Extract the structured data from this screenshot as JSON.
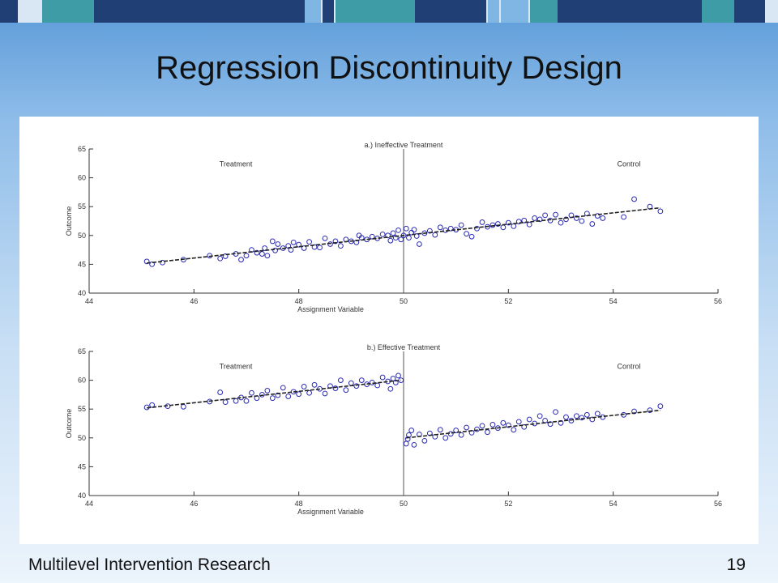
{
  "slide": {
    "title": "Regression Discontinuity Design",
    "footer": "Multilevel Intervention Research",
    "page_number": "19"
  },
  "colors": {
    "marker": "#2a2ab4",
    "fit_line": "#222222",
    "axis": "#333333",
    "topbar_dark": "#1f3f75",
    "topbar_teal": "#3d9ca6",
    "topbar_light": "#7fb6e3"
  },
  "chart_data": [
    {
      "type": "scatter",
      "title": "a.) Ineffective Treatment",
      "xlabel": "Assignment Variable",
      "ylabel": "Outcome",
      "xlim": [
        44,
        56
      ],
      "ylim": [
        40,
        65
      ],
      "xticks": [
        44,
        46,
        48,
        50,
        52,
        54,
        56
      ],
      "yticks": [
        40,
        45,
        50,
        55,
        60,
        65
      ],
      "cutoff": 50,
      "annotations": [
        {
          "text": "Treatment",
          "x": 46.8,
          "y": 62
        },
        {
          "text": "Control",
          "x": 54.3,
          "y": 62
        }
      ],
      "fit_lines": [
        {
          "x": [
            45.1,
            54.9
          ],
          "y": [
            45.2,
            54.8
          ]
        }
      ],
      "series": [
        {
          "x": [
            45.1,
            45.2,
            45.4,
            45.8,
            46.3,
            46.5,
            46.6,
            46.8,
            46.9,
            47.0,
            47.1,
            47.2,
            47.3,
            47.35,
            47.4,
            47.5,
            47.55,
            47.6,
            47.7,
            47.8,
            47.85,
            47.9,
            48.0,
            48.1,
            48.2,
            48.3,
            48.4,
            48.5,
            48.6,
            48.7,
            48.8,
            48.9,
            49.0,
            49.1,
            49.15,
            49.2,
            49.3,
            49.4,
            49.5,
            49.6,
            49.7,
            49.75,
            49.8,
            49.85,
            49.9,
            49.95,
            50.0,
            50.05,
            50.1,
            50.15,
            50.2,
            50.25,
            50.3,
            50.4,
            50.5,
            50.6,
            50.7,
            50.8,
            50.9,
            51.0,
            51.1,
            51.2,
            51.3,
            51.4,
            51.5,
            51.6,
            51.7,
            51.8,
            51.9,
            52.0,
            52.1,
            52.2,
            52.3,
            52.4,
            52.5,
            52.6,
            52.7,
            52.8,
            52.9,
            53.0,
            53.1,
            53.2,
            53.3,
            53.4,
            53.5,
            53.6,
            53.7,
            53.8,
            54.2,
            54.4,
            54.7,
            54.9
          ],
          "y": [
            45.5,
            45.0,
            45.3,
            45.8,
            46.5,
            46.0,
            46.4,
            46.8,
            45.8,
            46.5,
            47.5,
            47.0,
            46.8,
            47.8,
            46.5,
            49.0,
            47.4,
            48.5,
            47.8,
            48.2,
            47.5,
            48.8,
            48.4,
            47.8,
            48.9,
            48.0,
            47.9,
            49.5,
            48.5,
            49.0,
            48.2,
            49.3,
            49.0,
            48.8,
            50.0,
            49.6,
            49.3,
            49.8,
            49.5,
            50.2,
            50.0,
            49.1,
            50.4,
            49.6,
            50.9,
            49.3,
            50.0,
            51.2,
            49.6,
            50.5,
            51.0,
            49.9,
            48.5,
            50.4,
            50.8,
            50.1,
            51.4,
            50.9,
            51.2,
            51.0,
            51.8,
            50.3,
            49.8,
            51.2,
            52.3,
            51.5,
            51.8,
            52.0,
            51.4,
            52.2,
            51.6,
            52.4,
            52.6,
            51.9,
            53.0,
            52.8,
            53.5,
            52.6,
            53.6,
            52.2,
            52.8,
            53.5,
            53.0,
            52.5,
            53.8,
            52.0,
            53.4,
            53.0,
            53.2,
            56.3,
            55.0,
            54.2
          ]
        }
      ]
    },
    {
      "type": "scatter",
      "title": "b.) Effective Treatment",
      "xlabel": "Assignment Variable",
      "ylabel": "Outcome",
      "xlim": [
        44,
        56
      ],
      "ylim": [
        40,
        65
      ],
      "xticks": [
        44,
        46,
        48,
        50,
        52,
        54,
        56
      ],
      "yticks": [
        40,
        45,
        50,
        55,
        60,
        65
      ],
      "cutoff": 50,
      "annotations": [
        {
          "text": "Treatment",
          "x": 46.8,
          "y": 62
        },
        {
          "text": "Control",
          "x": 54.3,
          "y": 62
        }
      ],
      "fit_lines": [
        {
          "x": [
            45.1,
            49.95
          ],
          "y": [
            55.2,
            60.0
          ]
        },
        {
          "x": [
            50.05,
            54.9
          ],
          "y": [
            50.0,
            54.8
          ]
        }
      ],
      "series": [
        {
          "x": [
            45.1,
            45.2,
            45.5,
            45.8,
            46.3,
            46.5,
            46.6,
            46.8,
            46.9,
            47.0,
            47.1,
            47.2,
            47.3,
            47.4,
            47.5,
            47.6,
            47.7,
            47.8,
            47.9,
            48.0,
            48.1,
            48.2,
            48.3,
            48.4,
            48.5,
            48.6,
            48.7,
            48.8,
            48.9,
            49.0,
            49.1,
            49.2,
            49.3,
            49.4,
            49.5,
            49.6,
            49.7,
            49.75,
            49.8,
            49.85,
            49.9,
            49.95,
            50.05,
            50.08,
            50.1,
            50.15,
            50.2,
            50.3,
            50.4,
            50.5,
            50.6,
            50.7,
            50.8,
            50.9,
            51.0,
            51.1,
            51.2,
            51.3,
            51.4,
            51.5,
            51.6,
            51.7,
            51.8,
            51.9,
            52.0,
            52.1,
            52.2,
            52.3,
            52.4,
            52.5,
            52.6,
            52.7,
            52.8,
            52.9,
            53.0,
            53.1,
            53.2,
            53.3,
            53.4,
            53.5,
            53.6,
            53.7,
            53.8,
            54.2,
            54.4,
            54.7,
            54.9
          ],
          "y": [
            55.3,
            55.7,
            55.5,
            55.4,
            56.3,
            57.9,
            56.2,
            56.4,
            57.0,
            56.4,
            57.8,
            56.9,
            57.5,
            58.2,
            56.9,
            57.4,
            58.7,
            57.2,
            58.0,
            57.6,
            58.9,
            57.8,
            59.2,
            58.5,
            57.7,
            59.0,
            58.6,
            60.0,
            58.3,
            59.5,
            59.0,
            60.0,
            59.3,
            59.6,
            59.1,
            60.5,
            59.8,
            58.5,
            60.3,
            59.6,
            60.8,
            60.0,
            49.0,
            49.8,
            50.5,
            51.3,
            48.8,
            50.6,
            49.5,
            50.8,
            50.2,
            51.4,
            50.0,
            50.7,
            51.3,
            50.5,
            51.8,
            50.9,
            51.5,
            52.1,
            51.0,
            52.3,
            51.7,
            52.6,
            52.2,
            51.4,
            52.8,
            51.9,
            53.2,
            52.5,
            53.8,
            53.0,
            52.4,
            54.5,
            52.6,
            53.6,
            53.0,
            53.8,
            53.5,
            54.0,
            53.2,
            54.2,
            53.6,
            54.0,
            54.6,
            54.8,
            55.5
          ]
        }
      ]
    }
  ]
}
